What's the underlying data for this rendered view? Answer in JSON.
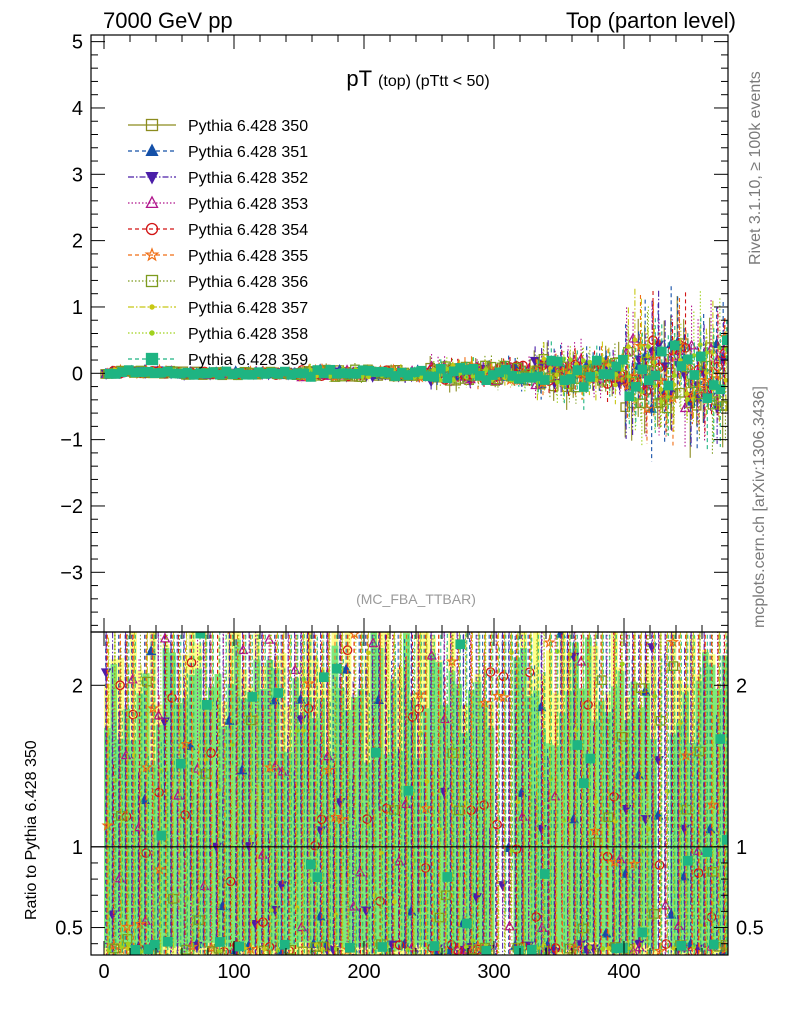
{
  "header": {
    "left": "7000 GeV pp",
    "right": "Top (parton level)"
  },
  "title": {
    "main": "pT",
    "sub": "(top) (pTtt < 50)"
  },
  "side_labels": {
    "rivet": "Rivet 3.1.10, ≥ 100k events",
    "mcplots": "mcplots.cern.ch [arXiv:1306.3436]"
  },
  "watermark": "(MC_FBA_TTBAR)",
  "ratio_ylabel": "Ratio to Pythia 6.428 350",
  "colors": {
    "band_green": "#7dea7d",
    "band_yellow": "#ffff8c"
  },
  "chart_data": [
    {
      "type": "scatter",
      "panel": "main",
      "xlim": [
        -10,
        480
      ],
      "ylim": [
        -3.9,
        5.1
      ],
      "yticks": [
        -3,
        -2,
        -1,
        0,
        1,
        2,
        3,
        4,
        5
      ],
      "ytick_labels": [
        "−3",
        "−2",
        "−1",
        "0",
        "1",
        "2",
        "3",
        "4",
        "5"
      ],
      "legend_position": "top-left",
      "bin_width": 5,
      "bin_start": 0,
      "bin_count": 96,
      "series": [
        {
          "name": "Pythia 6.428 350",
          "color": "#8c8c1f",
          "marker": "square-open",
          "dash": "solid",
          "seed": 350
        },
        {
          "name": "Pythia 6.428 351",
          "color": "#1450a8",
          "marker": "triangle-up",
          "dash": "dashed",
          "seed": 351
        },
        {
          "name": "Pythia 6.428 352",
          "color": "#4b1ea8",
          "marker": "triangle-down",
          "dash": "dashdot",
          "seed": 352
        },
        {
          "name": "Pythia 6.428 353",
          "color": "#b0148c",
          "marker": "triangle-open",
          "dash": "dotted",
          "seed": 353
        },
        {
          "name": "Pythia 6.428 354",
          "color": "#d21414",
          "marker": "circle-open",
          "dash": "dashed",
          "seed": 354
        },
        {
          "name": "Pythia 6.428 355",
          "color": "#f06e14",
          "marker": "star-open",
          "dash": "dashed",
          "seed": 355
        },
        {
          "name": "Pythia 6.428 356",
          "color": "#7d9b1e",
          "marker": "square-open",
          "dash": "dotted",
          "seed": 356
        },
        {
          "name": "Pythia 6.428 357",
          "color": "#c8c814",
          "marker": "dot",
          "dash": "dashdot",
          "seed": 357
        },
        {
          "name": "Pythia 6.428 358",
          "color": "#a0d21e",
          "marker": "dot",
          "dash": "dotted",
          "seed": 358
        },
        {
          "name": "Pythia 6.428 359",
          "color": "#1eb482",
          "marker": "square",
          "dash": "dashed",
          "seed": 359
        }
      ]
    },
    {
      "type": "scatter",
      "panel": "ratio",
      "xlim": [
        -10,
        480
      ],
      "ylim": [
        0.33,
        2.33
      ],
      "yticks": [
        0.5,
        1,
        2
      ],
      "ytick_labels": [
        "0.5",
        "1",
        "2"
      ],
      "xticks": [
        0,
        100,
        200,
        300,
        400
      ],
      "xtick_labels": [
        "0",
        "100",
        "200",
        "300",
        "400"
      ],
      "reference_line": 1,
      "ylabel": "Ratio to Pythia 6.428 350"
    }
  ]
}
